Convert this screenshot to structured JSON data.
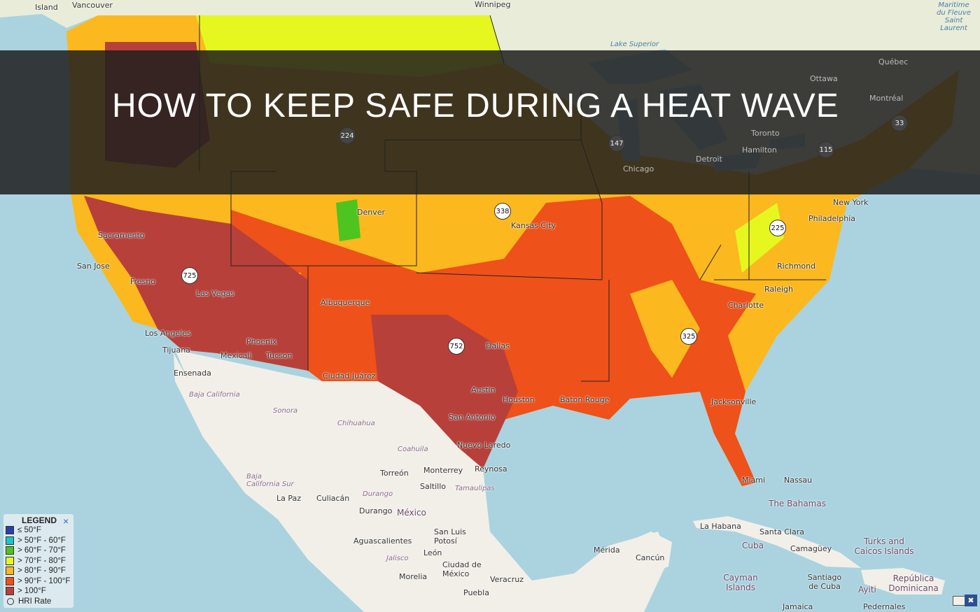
{
  "title": "HOW TO KEEP SAFE DURING A HEAT WAVE",
  "colors": {
    "water": "#aad3df",
    "land": "#f2efe9",
    "le50": "#2b3fa8",
    "50_60": "#1fc4c8",
    "60_70": "#4dc41f",
    "70_80": "#e5f71f",
    "80_90": "#fbb81f",
    "90_100": "#ee5119",
    "gt100": "#b8403a"
  },
  "legend": {
    "title": "LEGEND",
    "close": "×",
    "items": [
      {
        "label": "≤ 50°F",
        "color": "#2b3fa8"
      },
      {
        "label": "> 50°F - 60°F",
        "color": "#1fc4c8"
      },
      {
        "label": "> 60°F - 70°F",
        "color": "#4dc41f"
      },
      {
        "label": "> 70°F - 80°F",
        "color": "#e5f71f"
      },
      {
        "label": "> 80°F - 90°F",
        "color": "#fbb81f"
      },
      {
        "label": "> 90°F - 100°F",
        "color": "#ee5119"
      },
      {
        "label": "> 100°F",
        "color": "#b8403a"
      }
    ],
    "hri_label": "HRI Rate"
  },
  "clusters": [
    "224",
    "147",
    "33",
    "115",
    "338",
    "225",
    "725",
    "752",
    "325"
  ],
  "places": [
    "Vancouver",
    "Island",
    "Winnipeg",
    "Lake Superior",
    "Québec",
    "Montréal",
    "Ottawa",
    "Toronto",
    "Hamilton",
    "Detroit",
    "Chicago",
    "Denver",
    "Kansas City",
    "New York",
    "Philadelphia",
    "Richmond",
    "Raleigh",
    "Charlotte",
    "Sacramento",
    "San Jose",
    "Fresno",
    "Las Vegas",
    "Los Angeles",
    "Tijuana",
    "Mexicali",
    "Phoenix",
    "Tucson",
    "Ensenada",
    "Albuquerque",
    "Ciudad Juárez",
    "Dallas",
    "Austin",
    "Houston",
    "San Antonio",
    "Nuevo Laredo",
    "Reynosa",
    "Baton Rouge",
    "Jacksonville",
    "Miami",
    "Nassau",
    "The Bahamas",
    "Baja California",
    "Sonora",
    "Chihuahua",
    "Coahuila",
    "Torreón",
    "Monterrey",
    "Saltillo",
    "Tamaulipas",
    "Baja California Sur",
    "La Paz",
    "Culiacán",
    "Durango",
    "Durango",
    "México",
    "San Luis Potosí",
    "Aguascalientes",
    "León",
    "Jalisco",
    "Ciudad de México",
    "Morelia",
    "Puebla",
    "Veracruz",
    "Mérida",
    "Cancún",
    "La Habana",
    "Santa Clara",
    "Cuba",
    "Camagüey",
    "Cayman Islands",
    "Santiago de Cuba",
    "Turks and Caicos Islands",
    "República Dominicana",
    "Ayiti",
    "Pedernales",
    "Jamaica",
    "Maritime du Fleuve Saint Laurent"
  ]
}
